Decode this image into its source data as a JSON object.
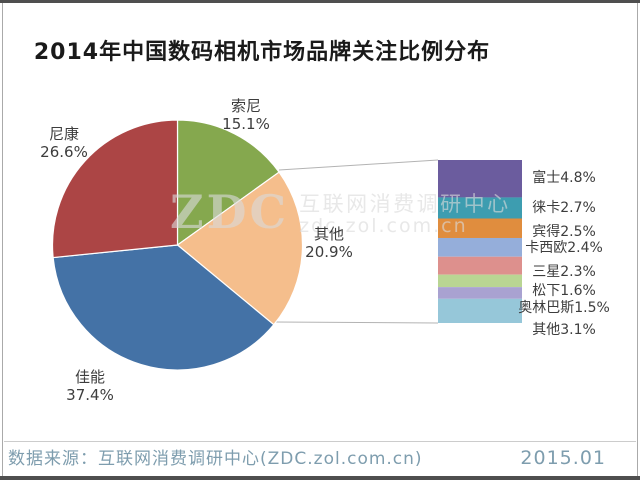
{
  "title": "2014年中国数码相机市场品牌关注比例分布",
  "watermark": {
    "logo": "ZDC",
    "org": "互联网消费调研中心",
    "site": "zdc.zol.com.cn"
  },
  "footer": {
    "source": "数据来源：互联网消费调研中心(ZDC.zol.com.cn)",
    "date": "2015.01"
  },
  "chart_data": {
    "type": "pie",
    "variant": "bar-of-pie",
    "title": "2014年中国数码相机市场品牌关注比例分布",
    "unit": "percent",
    "legend": "none",
    "pie": {
      "start_angle_deg": 0,
      "direction": "clockwise",
      "slices": [
        {
          "name": "索尼",
          "value": 15.1,
          "display": "15.1%",
          "color": "#85A84E"
        },
        {
          "name": "其他",
          "value": 20.9,
          "display": "20.9%",
          "color": "#F5BE8C"
        },
        {
          "name": "佳能",
          "value": 37.4,
          "display": "37.4%",
          "color": "#4472A6"
        },
        {
          "name": "尼康",
          "value": 26.6,
          "display": "26.6%",
          "color": "#AC4545"
        }
      ]
    },
    "breakout_bar": {
      "represents": "其他",
      "total": 20.9,
      "segments": [
        {
          "name": "富士",
          "value": 4.8,
          "display": "富士4.8%",
          "color": "#6B5C9E"
        },
        {
          "name": "徕卡",
          "value": 2.7,
          "display": "徕卡2.7%",
          "color": "#3D9DB0"
        },
        {
          "name": "宾得",
          "value": 2.5,
          "display": "宾得2.5%",
          "color": "#E08D3E"
        },
        {
          "name": "卡西欧",
          "value": 2.4,
          "display": "卡西欧2.4%",
          "color": "#95AEDA"
        },
        {
          "name": "三星",
          "value": 2.3,
          "display": "三星2.3%",
          "color": "#DD908D"
        },
        {
          "name": "松下",
          "value": 1.6,
          "display": "松下1.6%",
          "color": "#B9D593"
        },
        {
          "name": "奥林巴斯",
          "value": 1.5,
          "display": "奥林巴斯1.5%",
          "color": "#A9A2D1"
        },
        {
          "name": "其他",
          "value": 3.1,
          "display": "其他3.1%",
          "color": "#96C7D9"
        }
      ]
    }
  }
}
